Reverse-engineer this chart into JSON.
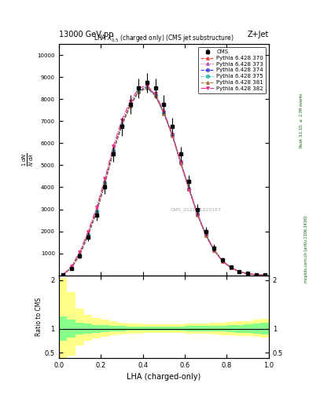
{
  "title_left": "13000 GeV pp",
  "title_right": "Z+Jet",
  "plot_title": "LHA $\\lambda^{1}_{0.5}$ (charged only) (CMS jet substructure)",
  "xlabel": "LHA (charged-only)",
  "ylabel_main": "$\\frac{1}{N}\\frac{dN}{d\\lambda}$",
  "ylabel_ratio": "Ratio to CMS",
  "watermark": "CMS_2021_I1920187",
  "rivet_text": "Rivet 3.1.10, $\\geq$ 2.7M events",
  "arxiv_text": "mcplots.cern.ch [arXiv:1306.3436]",
  "xlim": [
    0,
    1
  ],
  "ylim_main_max": 4.0,
  "ylim_ratio": [
    0.4,
    2.1
  ],
  "lha_bins": [
    0.0,
    0.04,
    0.08,
    0.12,
    0.16,
    0.2,
    0.24,
    0.28,
    0.32,
    0.36,
    0.4,
    0.44,
    0.48,
    0.52,
    0.56,
    0.6,
    0.64,
    0.68,
    0.72,
    0.76,
    0.8,
    0.84,
    0.88,
    0.92,
    0.96,
    1.0
  ],
  "cms_values": [
    0.02,
    0.3,
    0.88,
    1.75,
    2.75,
    4.0,
    5.5,
    6.75,
    7.75,
    8.5,
    8.75,
    8.5,
    7.75,
    6.75,
    5.5,
    4.25,
    3.0,
    2.0,
    1.25,
    0.7,
    0.38,
    0.18,
    0.075,
    0.025,
    0.008
  ],
  "cms_errors": [
    0.008,
    0.075,
    0.125,
    0.2,
    0.25,
    0.3,
    0.35,
    0.4,
    0.43,
    0.45,
    0.45,
    0.45,
    0.43,
    0.4,
    0.35,
    0.3,
    0.25,
    0.2,
    0.15,
    0.1,
    0.075,
    0.05,
    0.025,
    0.0125,
    0.005
  ],
  "py370_values": [
    0.02,
    0.35,
    0.975,
    1.9,
    2.95,
    4.25,
    5.7,
    6.875,
    7.75,
    8.375,
    8.55,
    8.2,
    7.4,
    6.4,
    5.15,
    3.95,
    2.8,
    1.85,
    1.15,
    0.65,
    0.35,
    0.1625,
    0.07,
    0.025,
    0.0075
  ],
  "py373_values": [
    0.02,
    0.375,
    1.0,
    1.925,
    3.0,
    4.3,
    5.75,
    6.925,
    7.8,
    8.425,
    8.575,
    8.225,
    7.425,
    6.425,
    5.175,
    3.975,
    2.825,
    1.875,
    1.1625,
    0.6625,
    0.3625,
    0.1675,
    0.0725,
    0.0275,
    0.0075
  ],
  "py374_values": [
    0.02,
    0.325,
    0.925,
    1.825,
    2.875,
    4.175,
    5.625,
    6.8,
    7.7,
    8.35,
    8.525,
    8.175,
    7.375,
    6.375,
    5.125,
    3.925,
    2.775,
    1.825,
    1.125,
    0.6375,
    0.345,
    0.1575,
    0.0675,
    0.025,
    0.0075
  ],
  "py375_values": [
    0.02,
    0.3375,
    0.95,
    1.85,
    2.9,
    4.2,
    5.65,
    6.825,
    7.725,
    8.375,
    8.55,
    8.2,
    7.4,
    6.4,
    5.15,
    3.95,
    2.8,
    1.85,
    1.1375,
    0.645,
    0.35,
    0.16,
    0.07,
    0.025,
    0.0075
  ],
  "py381_values": [
    0.02,
    0.325,
    0.9,
    1.8,
    2.85,
    4.15,
    5.6,
    6.775,
    7.675,
    8.325,
    8.5,
    8.15,
    7.35,
    6.35,
    5.1,
    3.9,
    2.75,
    1.8,
    1.1125,
    0.625,
    0.3375,
    0.155,
    0.0675,
    0.025,
    0.0075
  ],
  "py382_values": [
    0.025,
    0.4,
    1.05,
    2.0,
    3.075,
    4.4,
    5.875,
    7.05,
    7.9,
    8.5,
    8.625,
    8.25,
    7.45,
    6.425,
    5.15,
    3.925,
    2.775,
    1.825,
    1.125,
    0.6375,
    0.345,
    0.1575,
    0.0675,
    0.025,
    0.0075
  ],
  "ratio_green_upper": [
    1.25,
    1.18,
    1.12,
    1.1,
    1.08,
    1.07,
    1.06,
    1.05,
    1.04,
    1.04,
    1.04,
    1.04,
    1.04,
    1.04,
    1.04,
    1.05,
    1.05,
    1.05,
    1.06,
    1.06,
    1.07,
    1.08,
    1.09,
    1.1,
    1.12
  ],
  "ratio_green_lower": [
    0.75,
    0.82,
    0.88,
    0.9,
    0.92,
    0.93,
    0.94,
    0.95,
    0.96,
    0.96,
    0.96,
    0.96,
    0.96,
    0.96,
    0.96,
    0.95,
    0.95,
    0.95,
    0.94,
    0.94,
    0.93,
    0.92,
    0.91,
    0.9,
    0.88
  ],
  "ratio_yellow_upper": [
    2.05,
    1.75,
    1.42,
    1.28,
    1.22,
    1.18,
    1.15,
    1.13,
    1.11,
    1.1,
    1.09,
    1.09,
    1.09,
    1.09,
    1.09,
    1.1,
    1.1,
    1.11,
    1.12,
    1.13,
    1.14,
    1.15,
    1.16,
    1.18,
    1.2
  ],
  "ratio_yellow_lower": [
    0.25,
    0.45,
    0.65,
    0.75,
    0.8,
    0.83,
    0.86,
    0.88,
    0.89,
    0.9,
    0.91,
    0.91,
    0.91,
    0.91,
    0.91,
    0.9,
    0.9,
    0.89,
    0.88,
    0.87,
    0.86,
    0.85,
    0.84,
    0.83,
    0.82
  ],
  "series": [
    {
      "label": "Pythia 6.428 370",
      "color": "#ee3333",
      "linestyle": "--",
      "marker": "^",
      "markerfacecolor": "none",
      "values_key": "py370_values"
    },
    {
      "label": "Pythia 6.428 373",
      "color": "#bb44bb",
      "linestyle": ":",
      "marker": "^",
      "markerfacecolor": "none",
      "values_key": "py373_values"
    },
    {
      "label": "Pythia 6.428 374",
      "color": "#3333ee",
      "linestyle": "--",
      "marker": "o",
      "markerfacecolor": "none",
      "values_key": "py374_values"
    },
    {
      "label": "Pythia 6.428 375",
      "color": "#00aaaa",
      "linestyle": ":",
      "marker": "o",
      "markerfacecolor": "none",
      "values_key": "py375_values"
    },
    {
      "label": "Pythia 6.428 381",
      "color": "#aa7733",
      "linestyle": "--",
      "marker": "^",
      "markerfacecolor": "#aa7733",
      "values_key": "py381_values"
    },
    {
      "label": "Pythia 6.428 382",
      "color": "#ee3388",
      "linestyle": "-.",
      "marker": "v",
      "markerfacecolor": "#ee3388",
      "values_key": "py382_values"
    }
  ]
}
